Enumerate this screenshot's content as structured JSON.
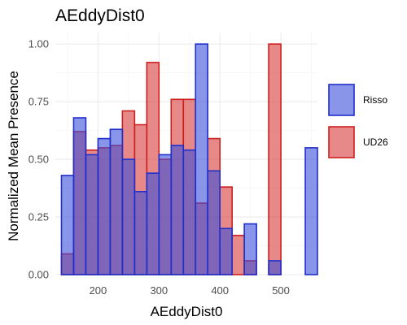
{
  "chart_data": {
    "type": "bar",
    "title": "AEddyDist0",
    "xlabel": "AEddyDist0",
    "ylabel": "Normalized Mean Presence",
    "xlim": [
      130,
      560
    ],
    "ylim": [
      0,
      1.05
    ],
    "x_ticks": [
      200,
      300,
      400,
      500
    ],
    "x_tick_labels": [
      "200",
      "300",
      "400",
      "500"
    ],
    "y_ticks": [
      0,
      0.25,
      0.5,
      0.75,
      1
    ],
    "y_tick_labels": [
      "0.00",
      "0.25",
      "0.50",
      "0.75",
      "1.00"
    ],
    "grid": true,
    "legend_position": "right",
    "bin_width": 20,
    "series": [
      {
        "name": "UD26",
        "fill": "#d93a3a",
        "stroke": "#cc1f1f",
        "points": [
          {
            "x": 150,
            "y": 0.09
          },
          {
            "x": 170,
            "y": 0.62
          },
          {
            "x": 190,
            "y": 0.54
          },
          {
            "x": 210,
            "y": 0.55
          },
          {
            "x": 230,
            "y": 0.56
          },
          {
            "x": 250,
            "y": 0.71
          },
          {
            "x": 270,
            "y": 0.65
          },
          {
            "x": 290,
            "y": 0.92
          },
          {
            "x": 310,
            "y": 0.5
          },
          {
            "x": 330,
            "y": 0.76
          },
          {
            "x": 350,
            "y": 0.76
          },
          {
            "x": 370,
            "y": 0.31
          },
          {
            "x": 390,
            "y": 0.59
          },
          {
            "x": 410,
            "y": 0.38
          },
          {
            "x": 430,
            "y": 0.17
          },
          {
            "x": 450,
            "y": 0.06
          },
          {
            "x": 490,
            "y": 1.0
          }
        ]
      },
      {
        "name": "Risso",
        "fill": "#3b4fd9",
        "stroke": "#1f2fcc",
        "points": [
          {
            "x": 150,
            "y": 0.43
          },
          {
            "x": 170,
            "y": 0.68
          },
          {
            "x": 190,
            "y": 0.52
          },
          {
            "x": 210,
            "y": 0.59
          },
          {
            "x": 230,
            "y": 0.63
          },
          {
            "x": 250,
            "y": 0.5
          },
          {
            "x": 270,
            "y": 0.36
          },
          {
            "x": 290,
            "y": 0.44
          },
          {
            "x": 310,
            "y": 0.52
          },
          {
            "x": 330,
            "y": 0.56
          },
          {
            "x": 350,
            "y": 0.54
          },
          {
            "x": 370,
            "y": 1.0
          },
          {
            "x": 390,
            "y": 0.45
          },
          {
            "x": 410,
            "y": 0.2
          },
          {
            "x": 450,
            "y": 0.22
          },
          {
            "x": 490,
            "y": 0.06
          },
          {
            "x": 550,
            "y": 0.55
          }
        ]
      }
    ]
  },
  "legend": {
    "items": [
      {
        "label": "Risso",
        "fill": "#3b4fd9",
        "stroke": "#1f2fcc"
      },
      {
        "label": "UD26",
        "fill": "#d93a3a",
        "stroke": "#cc1f1f"
      }
    ]
  }
}
